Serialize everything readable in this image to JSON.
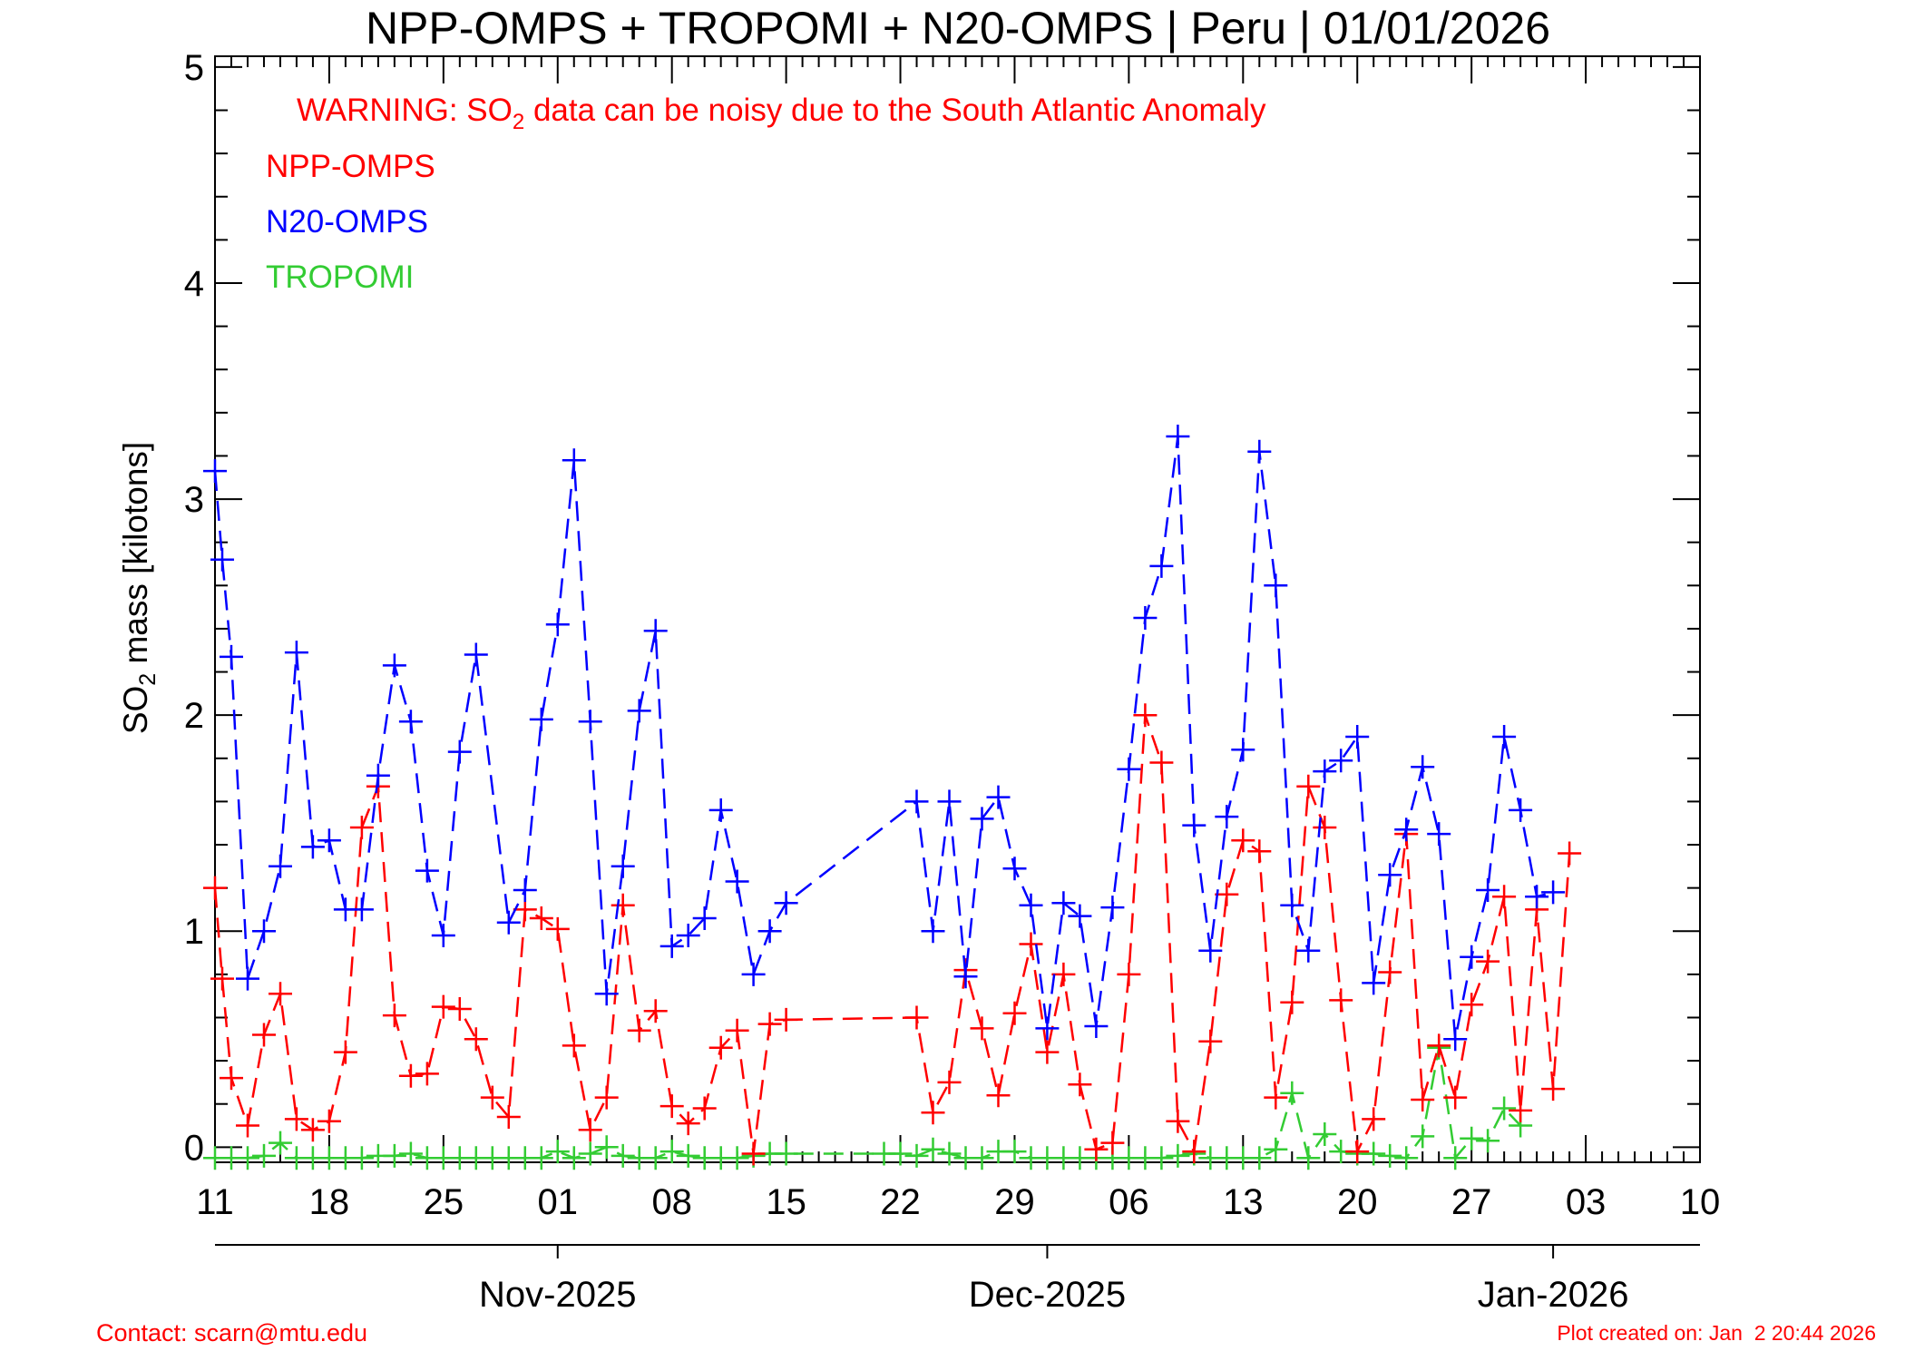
{
  "chart_data": {
    "type": "line",
    "title": "NPP-OMPS + TROPOMI + N20-OMPS | Peru | 01/01/2026",
    "warning": {
      "prefix": "WARNING: SO",
      "sub": "2",
      "suffix": " data can be noisy due to the South Atlantic Anomaly"
    },
    "ylabel": {
      "prefix": "SO",
      "sub": "2",
      "suffix": " mass [kilotons]"
    },
    "ylim": [
      -0.07,
      5.05
    ],
    "xlim": [
      "2025-10-11",
      "2026-01-10"
    ],
    "y_ticks": [
      "0",
      "1",
      "2",
      "3",
      "4",
      "5"
    ],
    "x_tick_labels": [
      {
        "date": "2025-10-11",
        "label": "11"
      },
      {
        "date": "2025-10-18",
        "label": "18"
      },
      {
        "date": "2025-10-25",
        "label": "25"
      },
      {
        "date": "2025-11-01",
        "label": "01"
      },
      {
        "date": "2025-11-08",
        "label": "08"
      },
      {
        "date": "2025-11-15",
        "label": "15"
      },
      {
        "date": "2025-11-22",
        "label": "22"
      },
      {
        "date": "2025-11-29",
        "label": "29"
      },
      {
        "date": "2025-12-06",
        "label": "06"
      },
      {
        "date": "2025-12-13",
        "label": "13"
      },
      {
        "date": "2025-12-20",
        "label": "20"
      },
      {
        "date": "2025-12-27",
        "label": "27"
      },
      {
        "date": "2026-01-03",
        "label": "03"
      },
      {
        "date": "2026-01-10",
        "label": "10"
      }
    ],
    "month_axis": [
      {
        "date": "2025-11-01",
        "label": "Nov-2025"
      },
      {
        "date": "2025-12-01",
        "label": "Dec-2025"
      },
      {
        "date": "2026-01-01",
        "label": "Jan-2026"
      }
    ],
    "grid": false,
    "legend_position": "top-left",
    "series": [
      {
        "name": "NPP-OMPS",
        "color": "#ff0000",
        "points": [
          [
            "2025-10-11",
            1.2
          ],
          [
            "2025-10-11",
            0.78
          ],
          [
            "2025-10-12",
            0.32
          ],
          [
            "2025-10-13",
            0.1
          ],
          [
            "2025-10-14",
            0.52
          ],
          [
            "2025-10-15",
            0.71
          ],
          [
            "2025-10-16",
            0.13
          ],
          [
            "2025-10-17",
            0.08
          ],
          [
            "2025-10-18",
            0.12
          ],
          [
            "2025-10-19",
            0.44
          ],
          [
            "2025-10-20",
            1.48
          ],
          [
            "2025-10-21",
            1.67
          ],
          [
            "2025-10-22",
            0.61
          ],
          [
            "2025-10-23",
            0.33
          ],
          [
            "2025-10-24",
            0.34
          ],
          [
            "2025-10-25",
            0.65
          ],
          [
            "2025-10-26",
            0.64
          ],
          [
            "2025-10-27",
            0.5
          ],
          [
            "2025-10-28",
            0.23
          ],
          [
            "2025-10-29",
            0.14
          ],
          [
            "2025-10-30",
            1.1
          ],
          [
            "2025-10-31",
            1.06
          ],
          [
            "2025-11-01",
            1.01
          ],
          [
            "2025-11-02",
            0.47
          ],
          [
            "2025-11-03",
            0.08
          ],
          [
            "2025-11-04",
            0.23
          ],
          [
            "2025-11-05",
            1.12
          ],
          [
            "2025-11-06",
            0.54
          ],
          [
            "2025-11-07",
            0.63
          ],
          [
            "2025-11-08",
            0.19
          ],
          [
            "2025-11-09",
            0.11
          ],
          [
            "2025-11-10",
            0.18
          ],
          [
            "2025-11-11",
            0.46
          ],
          [
            "2025-11-12",
            0.54
          ],
          [
            "2025-11-13",
            -0.03
          ],
          [
            "2025-11-14",
            0.57
          ],
          [
            "2025-11-15",
            0.59
          ],
          [
            "2025-11-23",
            0.6
          ],
          [
            "2025-11-24",
            0.16
          ],
          [
            "2025-11-25",
            0.3
          ],
          [
            "2025-11-26",
            0.82
          ],
          [
            "2025-11-27",
            0.55
          ],
          [
            "2025-11-28",
            0.24
          ],
          [
            "2025-11-29",
            0.62
          ],
          [
            "2025-11-30",
            0.94
          ],
          [
            "2025-12-01",
            0.44
          ],
          [
            "2025-12-02",
            0.8
          ],
          [
            "2025-12-03",
            0.29
          ],
          [
            "2025-12-04",
            -0.01
          ],
          [
            "2025-12-05",
            0.02
          ],
          [
            "2025-12-06",
            0.8
          ],
          [
            "2025-12-07",
            2.0
          ],
          [
            "2025-12-08",
            1.78
          ],
          [
            "2025-12-09",
            0.12
          ],
          [
            "2025-12-10",
            -0.02
          ],
          [
            "2025-12-11",
            0.49
          ],
          [
            "2025-12-12",
            1.17
          ],
          [
            "2025-12-13",
            1.42
          ],
          [
            "2025-12-14",
            1.37
          ],
          [
            "2025-12-15",
            0.23
          ],
          [
            "2025-12-16",
            0.67
          ],
          [
            "2025-12-17",
            1.67
          ],
          [
            "2025-12-18",
            1.48
          ],
          [
            "2025-12-19",
            0.68
          ],
          [
            "2025-12-20",
            -0.02
          ],
          [
            "2025-12-21",
            0.13
          ],
          [
            "2025-12-22",
            0.81
          ],
          [
            "2025-12-23",
            1.45
          ],
          [
            "2025-12-24",
            0.22
          ],
          [
            "2025-12-25",
            0.47
          ],
          [
            "2025-12-26",
            0.23
          ],
          [
            "2025-12-27",
            0.66
          ],
          [
            "2025-12-28",
            0.86
          ],
          [
            "2025-12-29",
            1.16
          ],
          [
            "2025-12-30",
            0.17
          ],
          [
            "2025-12-31",
            1.1
          ],
          [
            "2026-01-01",
            0.27
          ],
          [
            "2026-01-02",
            1.36
          ]
        ]
      },
      {
        "name": "N20-OMPS",
        "color": "#0000ff",
        "points": [
          [
            "2025-10-11",
            3.13
          ],
          [
            "2025-10-11",
            2.72
          ],
          [
            "2025-10-12",
            2.27
          ],
          [
            "2025-10-13",
            0.78
          ],
          [
            "2025-10-14",
            1.0
          ],
          [
            "2025-10-15",
            1.3
          ],
          [
            "2025-10-16",
            2.29
          ],
          [
            "2025-10-17",
            1.39
          ],
          [
            "2025-10-18",
            1.42
          ],
          [
            "2025-10-19",
            1.1
          ],
          [
            "2025-10-20",
            1.1
          ],
          [
            "2025-10-21",
            1.72
          ],
          [
            "2025-10-22",
            2.23
          ],
          [
            "2025-10-23",
            1.97
          ],
          [
            "2025-10-24",
            1.28
          ],
          [
            "2025-10-25",
            0.98
          ],
          [
            "2025-10-26",
            1.83
          ],
          [
            "2025-10-27",
            2.28
          ],
          [
            "2025-10-29",
            1.04
          ],
          [
            "2025-10-30",
            1.19
          ],
          [
            "2025-10-31",
            1.98
          ],
          [
            "2025-11-01",
            2.42
          ],
          [
            "2025-11-02",
            3.18
          ],
          [
            "2025-11-03",
            1.97
          ],
          [
            "2025-11-04",
            0.71
          ],
          [
            "2025-11-05",
            1.3
          ],
          [
            "2025-11-06",
            2.02
          ],
          [
            "2025-11-07",
            2.39
          ],
          [
            "2025-11-08",
            0.93
          ],
          [
            "2025-11-09",
            0.98
          ],
          [
            "2025-11-10",
            1.06
          ],
          [
            "2025-11-11",
            1.56
          ],
          [
            "2025-11-12",
            1.23
          ],
          [
            "2025-11-13",
            0.8
          ],
          [
            "2025-11-14",
            1.0
          ],
          [
            "2025-11-15",
            1.13
          ],
          [
            "2025-11-23",
            1.6
          ],
          [
            "2025-11-24",
            1.0
          ],
          [
            "2025-11-25",
            1.6
          ],
          [
            "2025-11-26",
            0.79
          ],
          [
            "2025-11-27",
            1.52
          ],
          [
            "2025-11-28",
            1.62
          ],
          [
            "2025-11-29",
            1.29
          ],
          [
            "2025-11-30",
            1.12
          ],
          [
            "2025-12-01",
            0.55
          ],
          [
            "2025-12-02",
            1.13
          ],
          [
            "2025-12-03",
            1.07
          ],
          [
            "2025-12-04",
            0.56
          ],
          [
            "2025-12-05",
            1.11
          ],
          [
            "2025-12-06",
            1.75
          ],
          [
            "2025-12-07",
            2.45
          ],
          [
            "2025-12-08",
            2.69
          ],
          [
            "2025-12-09",
            3.29
          ],
          [
            "2025-12-10",
            1.49
          ],
          [
            "2025-12-11",
            0.91
          ],
          [
            "2025-12-12",
            1.53
          ],
          [
            "2025-12-13",
            1.84
          ],
          [
            "2025-12-14",
            3.22
          ],
          [
            "2025-12-15",
            2.6
          ],
          [
            "2025-12-16",
            1.12
          ],
          [
            "2025-12-17",
            0.91
          ],
          [
            "2025-12-18",
            1.74
          ],
          [
            "2025-12-19",
            1.79
          ],
          [
            "2025-12-20",
            1.9
          ],
          [
            "2025-12-21",
            0.76
          ],
          [
            "2025-12-22",
            1.26
          ],
          [
            "2025-12-23",
            1.47
          ],
          [
            "2025-12-24",
            1.76
          ],
          [
            "2025-12-25",
            1.45
          ],
          [
            "2025-12-26",
            0.5
          ],
          [
            "2025-12-27",
            0.88
          ],
          [
            "2025-12-28",
            1.19
          ],
          [
            "2025-12-29",
            1.9
          ],
          [
            "2025-12-30",
            1.56
          ],
          [
            "2025-12-31",
            1.16
          ],
          [
            "2026-01-01",
            1.18
          ]
        ]
      },
      {
        "name": "TROPOMI",
        "color": "#33cc33",
        "points": [
          [
            "2025-10-11",
            -0.05
          ],
          [
            "2025-10-12",
            -0.05
          ],
          [
            "2025-10-13",
            -0.05
          ],
          [
            "2025-10-14",
            -0.04
          ],
          [
            "2025-10-15",
            0.02
          ],
          [
            "2025-10-16",
            -0.05
          ],
          [
            "2025-10-17",
            -0.05
          ],
          [
            "2025-10-18",
            -0.05
          ],
          [
            "2025-10-19",
            -0.05
          ],
          [
            "2025-10-20",
            -0.05
          ],
          [
            "2025-10-21",
            -0.04
          ],
          [
            "2025-10-22",
            -0.04
          ],
          [
            "2025-10-23",
            -0.03
          ],
          [
            "2025-10-24",
            -0.05
          ],
          [
            "2025-10-25",
            -0.05
          ],
          [
            "2025-10-26",
            -0.05
          ],
          [
            "2025-10-27",
            -0.05
          ],
          [
            "2025-10-28",
            -0.05
          ],
          [
            "2025-10-29",
            -0.05
          ],
          [
            "2025-10-30",
            -0.05
          ],
          [
            "2025-10-31",
            -0.05
          ],
          [
            "2025-11-01",
            -0.02
          ],
          [
            "2025-11-02",
            -0.05
          ],
          [
            "2025-11-03",
            -0.03
          ],
          [
            "2025-11-04",
            0.0
          ],
          [
            "2025-11-05",
            -0.04
          ],
          [
            "2025-11-06",
            -0.05
          ],
          [
            "2025-11-07",
            -0.05
          ],
          [
            "2025-11-08",
            -0.02
          ],
          [
            "2025-11-09",
            -0.04
          ],
          [
            "2025-11-10",
            -0.05
          ],
          [
            "2025-11-11",
            -0.05
          ],
          [
            "2025-11-12",
            -0.05
          ],
          [
            "2025-11-13",
            -0.04
          ],
          [
            "2025-11-14",
            -0.03
          ],
          [
            "2025-11-15",
            -0.03
          ],
          [
            "2025-11-21",
            -0.03
          ],
          [
            "2025-11-22",
            -0.03
          ],
          [
            "2025-11-23",
            -0.04
          ],
          [
            "2025-11-24",
            -0.01
          ],
          [
            "2025-11-25",
            -0.03
          ],
          [
            "2025-11-26",
            -0.05
          ],
          [
            "2025-11-27",
            -0.05
          ],
          [
            "2025-11-28",
            -0.02
          ],
          [
            "2025-11-29",
            -0.02
          ],
          [
            "2025-11-30",
            -0.05
          ],
          [
            "2025-12-01",
            -0.05
          ],
          [
            "2025-12-02",
            -0.05
          ],
          [
            "2025-12-03",
            -0.05
          ],
          [
            "2025-12-04",
            -0.05
          ],
          [
            "2025-12-05",
            -0.05
          ],
          [
            "2025-12-06",
            -0.05
          ],
          [
            "2025-12-07",
            -0.05
          ],
          [
            "2025-12-08",
            -0.05
          ],
          [
            "2025-12-09",
            -0.04
          ],
          [
            "2025-12-10",
            -0.03
          ],
          [
            "2025-12-11",
            -0.05
          ],
          [
            "2025-12-12",
            -0.05
          ],
          [
            "2025-12-13",
            -0.05
          ],
          [
            "2025-12-14",
            -0.05
          ],
          [
            "2025-12-15",
            -0.01
          ],
          [
            "2025-12-16",
            0.25
          ],
          [
            "2025-12-17",
            -0.05
          ],
          [
            "2025-12-18",
            0.06
          ],
          [
            "2025-12-19",
            -0.02
          ],
          [
            "2025-12-20",
            -0.03
          ],
          [
            "2025-12-21",
            -0.03
          ],
          [
            "2025-12-22",
            -0.04
          ],
          [
            "2025-12-23",
            -0.05
          ],
          [
            "2025-12-24",
            0.05
          ],
          [
            "2025-12-25",
            0.46
          ],
          [
            "2025-12-26",
            -0.05
          ],
          [
            "2025-12-27",
            0.04
          ],
          [
            "2025-12-28",
            0.03
          ],
          [
            "2025-12-29",
            0.18
          ],
          [
            "2025-12-30",
            0.1
          ]
        ]
      }
    ]
  },
  "footer": {
    "contact": "Contact: scarn@mtu.edu",
    "created": "Plot created on: Jan  2 20:44 2026"
  }
}
